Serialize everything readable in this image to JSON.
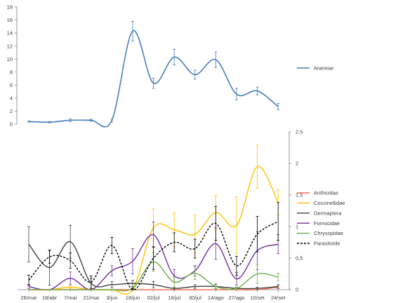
{
  "chart_data": [
    {
      "type": "line",
      "categories": [
        "26/mar",
        "18/abr",
        "7/mai",
        "21/mai",
        "3/jun",
        "18/jun",
        "02/jul",
        "16/jul",
        "30/jul",
        "14/ago",
        "27/ago",
        "10/set",
        "24/set"
      ],
      "ylim": [
        0,
        18
      ],
      "yticks": [
        "0",
        "2",
        "4",
        "6",
        "8",
        "10",
        "12",
        "14",
        "16",
        "18"
      ],
      "grid": false,
      "legend": "right",
      "series": [
        {
          "name": "Araneae",
          "color": "#4a7ebb",
          "dash": "solid",
          "values": [
            0.4,
            0.3,
            0.6,
            0.6,
            0.6,
            14.3,
            6.3,
            10.3,
            7.6,
            9.9,
            4.6,
            5.1,
            2.7
          ],
          "err": [
            0.1,
            0.1,
            0.2,
            0.15,
            0.25,
            1.5,
            0.8,
            1.2,
            0.7,
            1.2,
            0.9,
            0.6,
            0.5
          ]
        }
      ]
    },
    {
      "type": "line",
      "categories": [
        "26/mar",
        "18/abr",
        "7/mai",
        "21/mai",
        "3/jun",
        "18/jun",
        "02/jul",
        "16/jul",
        "30/jul",
        "14/ago",
        "27/ago",
        "10/set",
        "24/set"
      ],
      "ylim": [
        0,
        2.5
      ],
      "yticks": [
        "0",
        "0,5",
        "1",
        "1,5",
        "2",
        "2,5"
      ],
      "grid": false,
      "legend": "right",
      "series": [
        {
          "name": "Anthicidae",
          "color": "#f07050",
          "dash": "solid",
          "values": [
            0,
            0,
            0,
            0,
            0,
            0,
            0,
            0,
            0,
            0,
            0,
            0,
            0.04
          ],
          "err": [
            0,
            0,
            0,
            0,
            0,
            0,
            0,
            0,
            0,
            0,
            0,
            0,
            0.02
          ]
        },
        {
          "name": "Coccinellidae",
          "color": "#ffc000",
          "dash": "solid",
          "values": [
            0,
            0,
            0.04,
            0,
            0,
            0,
            0.98,
            0.95,
            0.88,
            1.22,
            1.02,
            1.95,
            1.38
          ],
          "err": [
            0,
            0,
            0.02,
            0,
            0,
            0,
            0.3,
            0.27,
            0.3,
            0.27,
            0.45,
            0.34,
            0.2
          ]
        },
        {
          "name": "Dermaptera",
          "color": "#404040",
          "dash": "solid",
          "values": [
            0.72,
            0.35,
            0.76,
            0.1,
            0.08,
            0.1,
            0.08,
            0.02,
            0.05,
            0.05,
            0.02,
            0.02,
            0.05
          ],
          "err": [
            0.28,
            0.28,
            0.26,
            0.08,
            0.05,
            0.05,
            0.05,
            0.02,
            0.03,
            0.03,
            0.02,
            0.02,
            0.03
          ]
        },
        {
          "name": "Formicidae",
          "color": "#7030a0",
          "dash": "solid",
          "values": [
            0.05,
            0,
            0.18,
            0,
            0.3,
            0.45,
            0.87,
            0.22,
            0.3,
            0.73,
            0.17,
            0.62,
            0.72
          ],
          "err": [
            0.03,
            0,
            0.1,
            0,
            0.08,
            0.2,
            0.2,
            0.1,
            0.08,
            0.25,
            0.1,
            0.3,
            0.15
          ]
        },
        {
          "name": "Chrysopidae",
          "color": "#70ad47",
          "dash": "solid",
          "values": [
            0,
            0,
            0,
            0,
            0,
            0.02,
            0.44,
            0.12,
            0.26,
            0.05,
            0.02,
            0.25,
            0.2
          ],
          "err": [
            0,
            0,
            0,
            0,
            0,
            0.02,
            0.15,
            0.08,
            0.1,
            0.05,
            0.02,
            0.15,
            0.06
          ]
        },
        {
          "name": "Parasitoide",
          "color": "#000000",
          "dash": "dashed",
          "values": [
            0.15,
            0.52,
            0.46,
            0.12,
            0.7,
            0,
            0.5,
            0.75,
            0.65,
            1.05,
            0.38,
            0.88,
            1.08
          ],
          "err": [
            0.08,
            0.1,
            0.12,
            0.1,
            0.13,
            0.02,
            0.18,
            0.15,
            0.15,
            0.27,
            0.15,
            0.28,
            0.3
          ]
        }
      ]
    }
  ]
}
